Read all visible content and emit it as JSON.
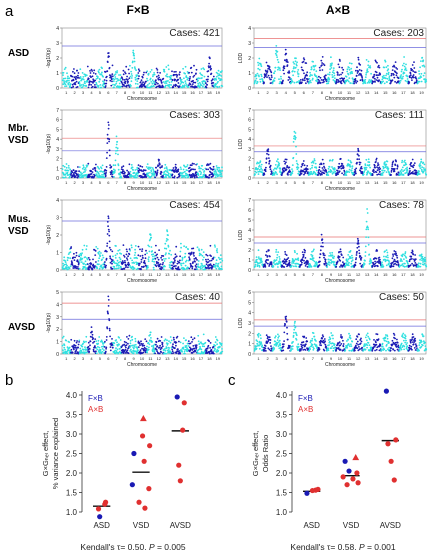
{
  "panel_labels": {
    "a": "a",
    "b": "b",
    "c": "c"
  },
  "column_titles": [
    "F×B",
    "A×B"
  ],
  "row_labels": [
    [
      "ASD"
    ],
    [
      "Mbr.",
      "VSD"
    ],
    [
      "Mus.",
      "VSD"
    ],
    [
      "AVSD"
    ]
  ],
  "colors": {
    "blue": "#1a1ab4",
    "cyan": "#2fe0e0",
    "red": "#e03030",
    "blue_line": "#6b6bdc",
    "red_line": "#e87070"
  },
  "manhattan": {
    "fb": {
      "ylabel": "-log10(p)",
      "chromosome_ticks": [
        "1",
        "2",
        "3",
        "4",
        "5",
        "6",
        "7",
        "8",
        "9",
        "10",
        "11",
        "12",
        "13",
        "14",
        "15",
        "16",
        "17",
        "18",
        "19"
      ],
      "chromosomes": 19,
      "panels": [
        {
          "cases": "Cases: 421",
          "ylim": [
            0,
            4
          ],
          "yticks": [
            0,
            1,
            2,
            3,
            4
          ],
          "thresholds": [
            2.8
          ],
          "peaks": [
            [
              6,
              2.6
            ],
            [
              9,
              2.8
            ],
            [
              18,
              2.2
            ]
          ],
          "xlabel": "Chromosome"
        },
        {
          "cases": "Cases: 303",
          "ylim": [
            0,
            7
          ],
          "yticks": [
            0,
            1,
            2,
            3,
            4,
            5,
            6,
            7
          ],
          "thresholds": [
            2.8,
            4.1
          ],
          "peaks": [
            [
              6,
              6.0
            ],
            [
              7,
              4.5
            ],
            [
              12,
              2.0
            ]
          ],
          "xlabel": "Chromosome"
        },
        {
          "cases": "Cases: 454",
          "ylim": [
            0,
            4
          ],
          "yticks": [
            0,
            1,
            2,
            3,
            4
          ],
          "thresholds": [
            2.8
          ],
          "peaks": [
            [
              6,
              3.2
            ],
            [
              11,
              2.4
            ],
            [
              13,
              2.5
            ]
          ],
          "xlabel": "Chromosome"
        },
        {
          "cases": "Cases: 40",
          "ylim": [
            0,
            5
          ],
          "yticks": [
            0,
            1,
            2,
            3,
            4,
            5
          ],
          "thresholds": [
            2.8,
            4.1
          ],
          "peaks": [
            [
              6,
              4.8
            ],
            [
              4,
              2.3
            ],
            [
              11,
              1.8
            ]
          ],
          "xlabel": "Chromosome"
        }
      ]
    },
    "ab": {
      "ylabel": "LOD",
      "chromosome_ticks": [
        "1",
        "2",
        "3",
        "4",
        "5",
        "6",
        "7",
        "8",
        "9",
        "10",
        "11",
        "12",
        "13",
        "14",
        "15",
        "16",
        "17",
        "18",
        "19"
      ],
      "chromosomes": 19,
      "panels": [
        {
          "cases": "Cases: 203",
          "ylim": [
            0,
            4
          ],
          "yticks": [
            0,
            1,
            2,
            3,
            4
          ],
          "thresholds": [
            2.7,
            3.3
          ],
          "peaks": [
            [
              3,
              3.1
            ],
            [
              4,
              2.8
            ],
            [
              9,
              1.9
            ]
          ],
          "xlabel": "Chromosome"
        },
        {
          "cases": "Cases: 111",
          "ylim": [
            0,
            7
          ],
          "yticks": [
            0,
            1,
            2,
            3,
            4,
            5,
            6,
            7
          ],
          "thresholds": [
            2.7,
            3.3
          ],
          "peaks": [
            [
              5,
              6.1
            ],
            [
              2,
              3.8
            ],
            [
              12,
              3.2
            ]
          ],
          "xlabel": "Chromosome"
        },
        {
          "cases": "Cases: 78",
          "ylim": [
            0,
            7
          ],
          "yticks": [
            0,
            1,
            2,
            3,
            4,
            5,
            6,
            7
          ],
          "thresholds": [
            2.7,
            3.3
          ],
          "peaks": [
            [
              13,
              6.2
            ],
            [
              8,
              3.8
            ],
            [
              12,
              3.3
            ]
          ],
          "xlabel": "Chromosome"
        },
        {
          "cases": "Cases: 50",
          "ylim": [
            0,
            6
          ],
          "yticks": [
            0,
            1,
            2,
            3,
            4,
            5,
            6
          ],
          "thresholds": [
            2.7,
            3.3
          ],
          "peaks": [
            [
              4,
              4.6
            ],
            [
              5,
              3.5
            ],
            [
              8,
              1.6
            ]
          ],
          "xlabel": "Chromosome"
        }
      ]
    }
  },
  "chart_data": [
    {
      "type": "scatter",
      "panel": "b",
      "ylabel_lines": [
        "G×Gₕₑₗ effect,",
        "% variance explained"
      ],
      "categories": [
        "ASD",
        "VSD",
        "AVSD"
      ],
      "ylim": [
        1.0,
        4.0
      ],
      "yticks": [
        "1.0",
        "1.5",
        "2.0",
        "2.5",
        "3.0",
        "3.5",
        "4.0"
      ],
      "legend": [
        {
          "name": "F×B",
          "color": "#1a1ab4"
        },
        {
          "name": "A×B",
          "color": "#e03030"
        }
      ],
      "points": [
        {
          "cat": 0,
          "dx": -0.05,
          "y": 0.88,
          "series": "fb",
          "shape": "circle"
        },
        {
          "cat": 0,
          "dx": -0.08,
          "y": 1.08,
          "series": "ab",
          "shape": "circle"
        },
        {
          "cat": 0,
          "dx": 0.08,
          "y": 1.2,
          "series": "ab",
          "shape": "circle"
        },
        {
          "cat": 0,
          "dx": 0.1,
          "y": 1.25,
          "series": "ab",
          "shape": "circle"
        },
        {
          "cat": 1,
          "dx": 0.06,
          "y": 3.4,
          "series": "ab",
          "shape": "triangle"
        },
        {
          "cat": 1,
          "dx": 0.04,
          "y": 2.95,
          "series": "ab",
          "shape": "circle"
        },
        {
          "cat": 1,
          "dx": 0.22,
          "y": 2.7,
          "series": "ab",
          "shape": "circle"
        },
        {
          "cat": 1,
          "dx": -0.18,
          "y": 2.5,
          "series": "fb",
          "shape": "circle"
        },
        {
          "cat": 1,
          "dx": 0.08,
          "y": 2.3,
          "series": "ab",
          "shape": "circle"
        },
        {
          "cat": 1,
          "dx": -0.22,
          "y": 1.7,
          "series": "fb",
          "shape": "circle"
        },
        {
          "cat": 1,
          "dx": 0.2,
          "y": 1.6,
          "series": "ab",
          "shape": "circle"
        },
        {
          "cat": 1,
          "dx": -0.05,
          "y": 1.25,
          "series": "ab",
          "shape": "circle"
        },
        {
          "cat": 1,
          "dx": 0.1,
          "y": 1.1,
          "series": "ab",
          "shape": "circle"
        },
        {
          "cat": 2,
          "dx": -0.08,
          "y": 3.95,
          "series": "fb",
          "shape": "circle"
        },
        {
          "cat": 2,
          "dx": 0.1,
          "y": 3.8,
          "series": "ab",
          "shape": "circle"
        },
        {
          "cat": 2,
          "dx": 0.06,
          "y": 3.1,
          "series": "ab",
          "shape": "circle"
        },
        {
          "cat": 2,
          "dx": -0.04,
          "y": 2.2,
          "series": "ab",
          "shape": "circle"
        },
        {
          "cat": 2,
          "dx": 0.0,
          "y": 1.8,
          "series": "ab",
          "shape": "circle"
        }
      ],
      "medians": [
        1.15,
        2.02,
        3.08
      ],
      "stat_prefix": "Kendall's τ= 0.50, ",
      "stat_p": "P",
      "stat_suffix": " = 0.005"
    },
    {
      "type": "scatter",
      "panel": "c",
      "ylabel_lines": [
        "G×Gₕₑₗ effect,",
        "Odds Ratio"
      ],
      "categories": [
        "ASD",
        "VSD",
        "AVSD"
      ],
      "ylim": [
        1.0,
        4.0
      ],
      "yticks": [
        "1.0",
        "1.5",
        "2.0",
        "2.5",
        "3.0",
        "3.5",
        "4.0"
      ],
      "legend": [
        {
          "name": "F×B",
          "color": "#1a1ab4"
        },
        {
          "name": "A×B",
          "color": "#e03030"
        }
      ],
      "points": [
        {
          "cat": 0,
          "dx": -0.12,
          "y": 1.48,
          "series": "fb",
          "shape": "circle"
        },
        {
          "cat": 0,
          "dx": 0.02,
          "y": 1.55,
          "series": "ab",
          "shape": "circle"
        },
        {
          "cat": 0,
          "dx": 0.1,
          "y": 1.56,
          "series": "ab",
          "shape": "circle"
        },
        {
          "cat": 0,
          "dx": 0.16,
          "y": 1.58,
          "series": "ab",
          "shape": "circle"
        },
        {
          "cat": 1,
          "dx": 0.12,
          "y": 2.4,
          "series": "ab",
          "shape": "triangle"
        },
        {
          "cat": 1,
          "dx": -0.15,
          "y": 2.3,
          "series": "fb",
          "shape": "circle"
        },
        {
          "cat": 1,
          "dx": -0.05,
          "y": 2.05,
          "series": "fb",
          "shape": "circle"
        },
        {
          "cat": 1,
          "dx": 0.15,
          "y": 2.0,
          "series": "ab",
          "shape": "circle"
        },
        {
          "cat": 1,
          "dx": -0.2,
          "y": 1.9,
          "series": "ab",
          "shape": "circle"
        },
        {
          "cat": 1,
          "dx": 0.05,
          "y": 1.85,
          "series": "ab",
          "shape": "circle"
        },
        {
          "cat": 1,
          "dx": 0.18,
          "y": 1.75,
          "series": "ab",
          "shape": "circle"
        },
        {
          "cat": 1,
          "dx": -0.1,
          "y": 1.7,
          "series": "ab",
          "shape": "circle"
        },
        {
          "cat": 2,
          "dx": -0.1,
          "y": 4.1,
          "series": "fb",
          "shape": "circle"
        },
        {
          "cat": 2,
          "dx": 0.14,
          "y": 2.85,
          "series": "ab",
          "shape": "circle"
        },
        {
          "cat": 2,
          "dx": -0.06,
          "y": 2.75,
          "series": "ab",
          "shape": "circle"
        },
        {
          "cat": 2,
          "dx": 0.02,
          "y": 2.3,
          "series": "ab",
          "shape": "circle"
        },
        {
          "cat": 2,
          "dx": 0.1,
          "y": 1.82,
          "series": "ab",
          "shape": "circle"
        }
      ],
      "medians": [
        1.53,
        1.93,
        2.83
      ],
      "stat_prefix": "Kendall's τ= 0.58, ",
      "stat_p": "P",
      "stat_suffix": " = 0.001"
    }
  ]
}
